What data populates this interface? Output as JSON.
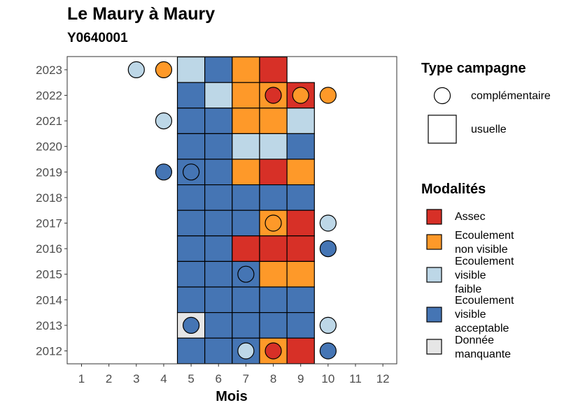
{
  "colors": {
    "Assec": "#d73027",
    "Ecoulement non visible": "#fe9929",
    "Ecoulement visible faible": "#bdd7e7",
    "Ecoulement visible acceptable": "#4575b4",
    "Donnée manquante": "#e6e6e6"
  },
  "chart_data": {
    "type": "heatmap",
    "title": "Le Maury à Maury",
    "subtitle": "Y0640001",
    "xlabel": "Mois",
    "ylabel": "",
    "x_ticks": [
      1,
      2,
      3,
      4,
      5,
      6,
      7,
      8,
      9,
      10,
      11,
      12
    ],
    "y_ticks": [
      2012,
      2013,
      2014,
      2015,
      2016,
      2017,
      2018,
      2019,
      2020,
      2021,
      2022,
      2023
    ],
    "usuelle": [
      {
        "year": 2023,
        "month": 5,
        "modalite": "Ecoulement visible faible"
      },
      {
        "year": 2023,
        "month": 6,
        "modalite": "Ecoulement visible acceptable"
      },
      {
        "year": 2023,
        "month": 7,
        "modalite": "Ecoulement non visible"
      },
      {
        "year": 2023,
        "month": 8,
        "modalite": "Assec"
      },
      {
        "year": 2022,
        "month": 5,
        "modalite": "Ecoulement visible acceptable"
      },
      {
        "year": 2022,
        "month": 6,
        "modalite": "Ecoulement visible faible"
      },
      {
        "year": 2022,
        "month": 7,
        "modalite": "Ecoulement non visible"
      },
      {
        "year": 2022,
        "month": 8,
        "modalite": "Ecoulement non visible"
      },
      {
        "year": 2022,
        "month": 9,
        "modalite": "Assec"
      },
      {
        "year": 2021,
        "month": 5,
        "modalite": "Ecoulement visible acceptable"
      },
      {
        "year": 2021,
        "month": 6,
        "modalite": "Ecoulement visible acceptable"
      },
      {
        "year": 2021,
        "month": 7,
        "modalite": "Ecoulement non visible"
      },
      {
        "year": 2021,
        "month": 8,
        "modalite": "Ecoulement non visible"
      },
      {
        "year": 2021,
        "month": 9,
        "modalite": "Ecoulement visible faible"
      },
      {
        "year": 2020,
        "month": 5,
        "modalite": "Ecoulement visible acceptable"
      },
      {
        "year": 2020,
        "month": 6,
        "modalite": "Ecoulement visible acceptable"
      },
      {
        "year": 2020,
        "month": 7,
        "modalite": "Ecoulement visible faible"
      },
      {
        "year": 2020,
        "month": 8,
        "modalite": "Ecoulement visible faible"
      },
      {
        "year": 2020,
        "month": 9,
        "modalite": "Ecoulement visible acceptable"
      },
      {
        "year": 2019,
        "month": 5,
        "modalite": "Ecoulement visible acceptable"
      },
      {
        "year": 2019,
        "month": 6,
        "modalite": "Ecoulement visible acceptable"
      },
      {
        "year": 2019,
        "month": 7,
        "modalite": "Ecoulement non visible"
      },
      {
        "year": 2019,
        "month": 8,
        "modalite": "Assec"
      },
      {
        "year": 2019,
        "month": 9,
        "modalite": "Ecoulement non visible"
      },
      {
        "year": 2018,
        "month": 5,
        "modalite": "Ecoulement visible acceptable"
      },
      {
        "year": 2018,
        "month": 6,
        "modalite": "Ecoulement visible acceptable"
      },
      {
        "year": 2018,
        "month": 7,
        "modalite": "Ecoulement visible acceptable"
      },
      {
        "year": 2018,
        "month": 8,
        "modalite": "Ecoulement visible acceptable"
      },
      {
        "year": 2018,
        "month": 9,
        "modalite": "Ecoulement visible acceptable"
      },
      {
        "year": 2017,
        "month": 5,
        "modalite": "Ecoulement visible acceptable"
      },
      {
        "year": 2017,
        "month": 6,
        "modalite": "Ecoulement visible acceptable"
      },
      {
        "year": 2017,
        "month": 7,
        "modalite": "Ecoulement visible acceptable"
      },
      {
        "year": 2017,
        "month": 8,
        "modalite": "Ecoulement non visible"
      },
      {
        "year": 2017,
        "month": 9,
        "modalite": "Assec"
      },
      {
        "year": 2016,
        "month": 5,
        "modalite": "Ecoulement visible acceptable"
      },
      {
        "year": 2016,
        "month": 6,
        "modalite": "Ecoulement visible acceptable"
      },
      {
        "year": 2016,
        "month": 7,
        "modalite": "Assec"
      },
      {
        "year": 2016,
        "month": 8,
        "modalite": "Assec"
      },
      {
        "year": 2016,
        "month": 9,
        "modalite": "Assec"
      },
      {
        "year": 2015,
        "month": 5,
        "modalite": "Ecoulement visible acceptable"
      },
      {
        "year": 2015,
        "month": 6,
        "modalite": "Ecoulement visible acceptable"
      },
      {
        "year": 2015,
        "month": 7,
        "modalite": "Ecoulement visible acceptable"
      },
      {
        "year": 2015,
        "month": 8,
        "modalite": "Ecoulement non visible"
      },
      {
        "year": 2015,
        "month": 9,
        "modalite": "Ecoulement non visible"
      },
      {
        "year": 2014,
        "month": 5,
        "modalite": "Ecoulement visible acceptable"
      },
      {
        "year": 2014,
        "month": 6,
        "modalite": "Ecoulement visible acceptable"
      },
      {
        "year": 2014,
        "month": 7,
        "modalite": "Ecoulement visible acceptable"
      },
      {
        "year": 2014,
        "month": 8,
        "modalite": "Ecoulement visible acceptable"
      },
      {
        "year": 2014,
        "month": 9,
        "modalite": "Ecoulement visible acceptable"
      },
      {
        "year": 2013,
        "month": 5,
        "modalite": "Donnée manquante"
      },
      {
        "year": 2013,
        "month": 6,
        "modalite": "Ecoulement visible acceptable"
      },
      {
        "year": 2013,
        "month": 7,
        "modalite": "Ecoulement visible acceptable"
      },
      {
        "year": 2013,
        "month": 8,
        "modalite": "Ecoulement visible acceptable"
      },
      {
        "year": 2013,
        "month": 9,
        "modalite": "Ecoulement visible acceptable"
      },
      {
        "year": 2012,
        "month": 5,
        "modalite": "Ecoulement visible acceptable"
      },
      {
        "year": 2012,
        "month": 6,
        "modalite": "Ecoulement visible acceptable"
      },
      {
        "year": 2012,
        "month": 7,
        "modalite": "Ecoulement visible acceptable"
      },
      {
        "year": 2012,
        "month": 8,
        "modalite": "Ecoulement non visible"
      },
      {
        "year": 2012,
        "month": 9,
        "modalite": "Assec"
      }
    ],
    "complementaire": [
      {
        "year": 2023,
        "month": 3,
        "modalite": "Ecoulement visible faible"
      },
      {
        "year": 2023,
        "month": 4,
        "modalite": "Ecoulement non visible"
      },
      {
        "year": 2022,
        "month": 8,
        "modalite": "Assec"
      },
      {
        "year": 2022,
        "month": 9,
        "modalite": "Ecoulement non visible"
      },
      {
        "year": 2022,
        "month": 10,
        "modalite": "Ecoulement non visible"
      },
      {
        "year": 2021,
        "month": 4,
        "modalite": "Ecoulement visible faible"
      },
      {
        "year": 2019,
        "month": 4,
        "modalite": "Ecoulement visible acceptable"
      },
      {
        "year": 2019,
        "month": 5,
        "modalite": "Ecoulement visible acceptable"
      },
      {
        "year": 2017,
        "month": 8,
        "modalite": "Ecoulement non visible"
      },
      {
        "year": 2017,
        "month": 10,
        "modalite": "Ecoulement visible faible"
      },
      {
        "year": 2016,
        "month": 10,
        "modalite": "Ecoulement visible acceptable"
      },
      {
        "year": 2015,
        "month": 7,
        "modalite": "Ecoulement visible acceptable"
      },
      {
        "year": 2013,
        "month": 5,
        "modalite": "Ecoulement visible acceptable"
      },
      {
        "year": 2013,
        "month": 10,
        "modalite": "Ecoulement visible faible"
      },
      {
        "year": 2012,
        "month": 7,
        "modalite": "Ecoulement visible faible"
      },
      {
        "year": 2012,
        "month": 8,
        "modalite": "Assec"
      },
      {
        "year": 2012,
        "month": 10,
        "modalite": "Ecoulement visible acceptable"
      }
    ]
  },
  "legend": {
    "type_title": "Type campagne",
    "types": [
      {
        "shape": "circle",
        "label": "complémentaire"
      },
      {
        "shape": "square",
        "label": "usuelle"
      }
    ],
    "modalites_title": "Modalités",
    "modalites": [
      {
        "key": "Assec",
        "lines": [
          "Assec"
        ]
      },
      {
        "key": "Ecoulement non visible",
        "lines": [
          "Ecoulement",
          "non visible"
        ]
      },
      {
        "key": "Ecoulement visible faible",
        "lines": [
          "Ecoulement",
          "visible",
          "faible"
        ]
      },
      {
        "key": "Ecoulement visible acceptable",
        "lines": [
          "Ecoulement",
          "visible",
          "acceptable"
        ]
      },
      {
        "key": "Donnée manquante",
        "lines": [
          "Donnée",
          "manquante"
        ]
      }
    ]
  }
}
